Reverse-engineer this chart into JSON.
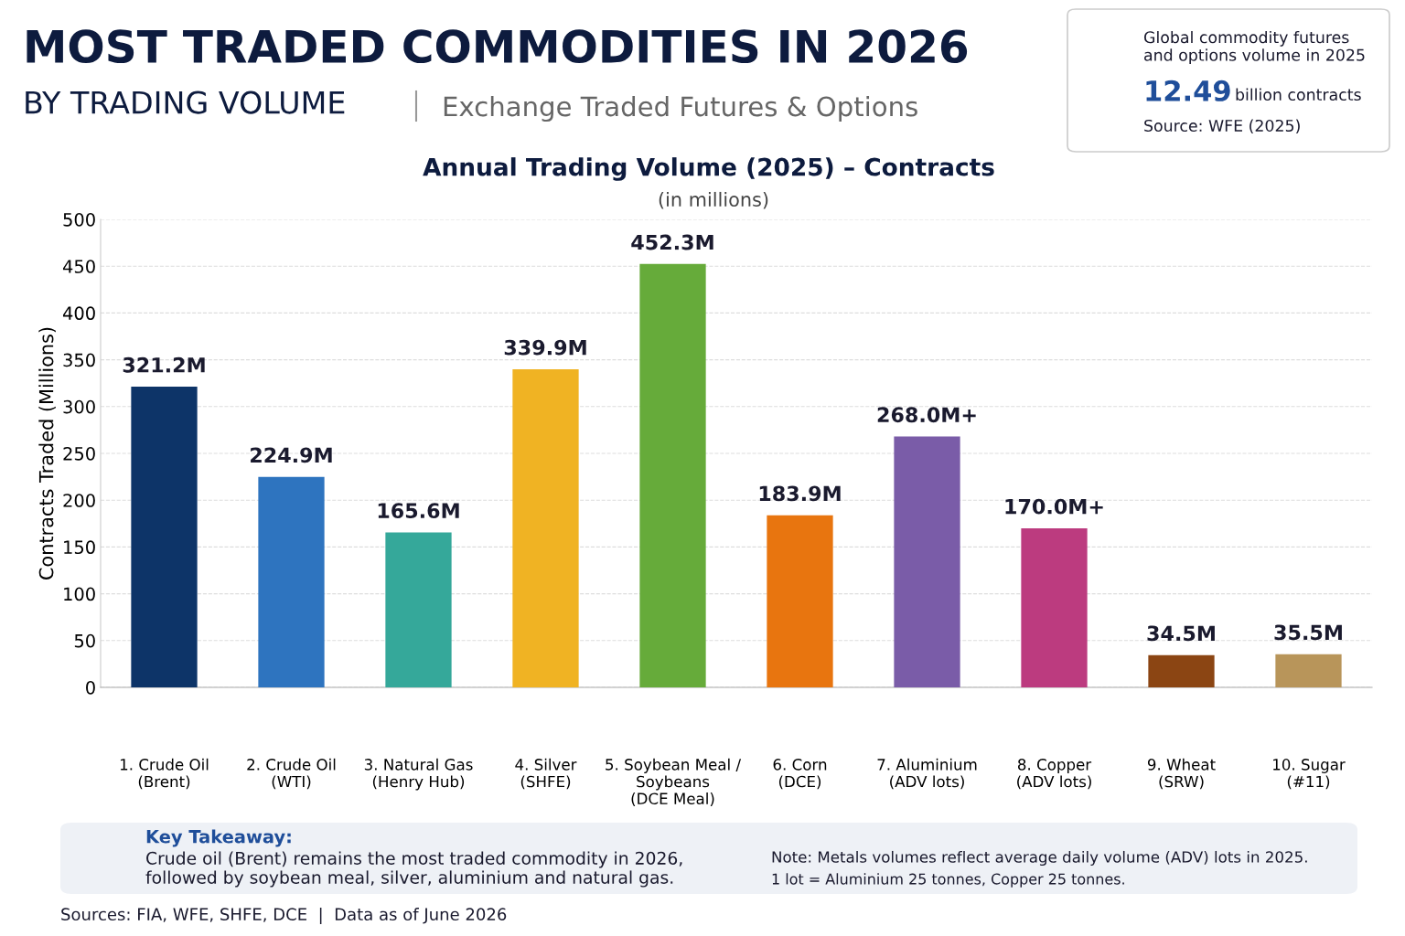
{
  "chart_data": {
    "type": "bar",
    "title": "MOST TRADED COMMODITIES IN 2026",
    "subtitle": "BY TRADING VOLUME",
    "ylabel": "Contracts Traded (Millions)",
    "categories": [
      "1. Crude Oil\n(Brent)",
      "2. Crude Oil\n(WTI)",
      "3. Natural Gas\n(Henry Hub)",
      "4. Silver\n(SHFE)",
      "5. Soybean Meal /\nSoybeans\n(DCE Meal)",
      "6. Corn\n(DCE)",
      "7. Aluminium\n(ADV lots)",
      "8. Copper\n(ADV lots)",
      "9. Wheat\n(SRW)",
      "10. Sugar\n(#11)"
    ],
    "values": [
      321.2,
      224.9,
      165.6,
      339.9,
      452.3,
      183.9,
      268.0,
      170.0,
      34.5,
      35.5
    ],
    "value_labels": [
      "321.2M",
      "224.9M",
      "165.6M",
      "339.9M",
      "452.3M",
      "183.9M",
      "268.0M+",
      "170.0M+",
      "34.5M",
      "35.5M"
    ],
    "colors": [
      "#0d3468",
      "#2e74bf",
      "#35a89a",
      "#f0b323",
      "#66ab3a",
      "#e8750f",
      "#7a5ca8",
      "#bc3b7f",
      "#8b4513",
      "#b8955a"
    ],
    "ylim": [
      0,
      500
    ],
    "yticks": [
      0,
      50,
      100,
      150,
      200,
      250,
      300,
      350,
      400,
      450,
      500
    ],
    "grid": "y",
    "annotations": [
      "Exchange Traded Futures & Options",
      "Annual Trading Volume (2025) – Contracts",
      "(in millions)",
      "Global commodity futures\nand options volume in 2025",
      "12.49",
      "billion contracts",
      "Source: WFE (2025)",
      "Key Takeaway:",
      "Crude oil (Brent) remains the most traded commodity in 2026,\nfollowed by soybean meal, silver, aluminium and natural gas.",
      "Note: Metals volumes reflect average daily volume (ADV) lots in 2025.",
      "1 lot = Aluminium 25 tonnes, Copper 25 tonnes.",
      "Sources: FIA, WFE, SHFE, DCE  |  Data as of June 2026"
    ]
  }
}
